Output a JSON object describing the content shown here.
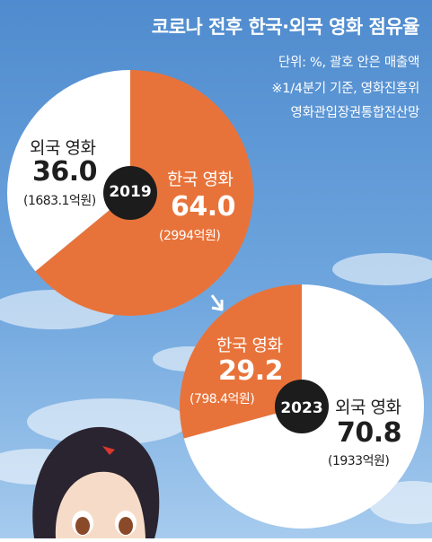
{
  "header": {
    "title": "코로나 전후 한국·외국 영화 점유율",
    "note_unit": "단위: %, 괄호 안은 매출액",
    "note_period": "※1/4분기 기준, 영화진흥위",
    "note_source": "영화관입장권통합전산망"
  },
  "colors": {
    "korean": "#E8733A",
    "foreign": "#FFFFFF",
    "badge": "#1C1C1C",
    "sky_top": "#5B95D4",
    "sky_bottom": "#9CC3EA"
  },
  "chart_data": [
    {
      "type": "pie",
      "year_label": "2019",
      "slices": [
        {
          "name": "한국 영화",
          "value": 64.0,
          "value_label": "64.0",
          "amount_label": "(2994억원)"
        },
        {
          "name": "외국 영화",
          "value": 36.0,
          "value_label": "36.0",
          "amount_label": "(1683.1억원)"
        }
      ]
    },
    {
      "type": "pie",
      "year_label": "2023",
      "slices": [
        {
          "name": "한국 영화",
          "value": 29.2,
          "value_label": "29.2",
          "amount_label": "(798.4억원)"
        },
        {
          "name": "외국 영화",
          "value": 70.8,
          "value_label": "70.8",
          "amount_label": "(1933억원)"
        }
      ]
    }
  ]
}
